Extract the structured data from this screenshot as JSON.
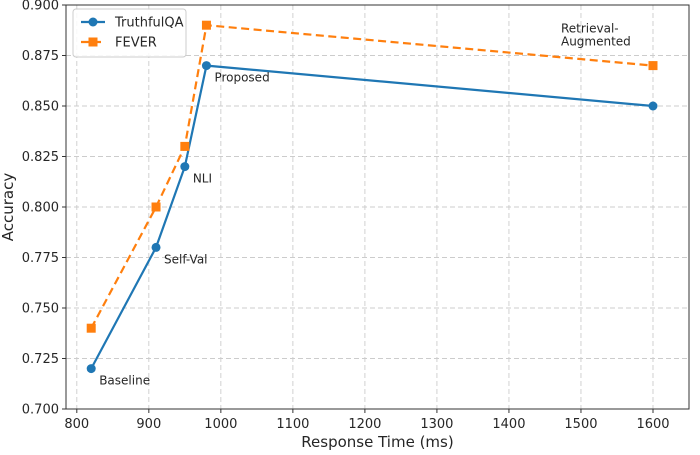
{
  "chart_data": {
    "type": "line",
    "title": "",
    "xlabel": "Response Time (ms)",
    "ylabel": "Accuracy",
    "xlim": [
      785,
      1650
    ],
    "ylim": [
      0.7,
      0.9
    ],
    "xticks": [
      800,
      900,
      1000,
      1100,
      1200,
      1300,
      1400,
      1500,
      1600
    ],
    "yticks": [
      0.7,
      0.725,
      0.75,
      0.775,
      0.8,
      0.825,
      0.85,
      0.875,
      0.9
    ],
    "ytick_labels": [
      "0.700",
      "0.725",
      "0.750",
      "0.775",
      "0.800",
      "0.825",
      "0.850",
      "0.875",
      "0.900"
    ],
    "grid": true,
    "legend_position": "top-left",
    "series": [
      {
        "name": "TruthfulQA",
        "color": "#1f77b4",
        "line_style": "solid",
        "marker": "circle",
        "points": [
          {
            "x": 820,
            "y": 0.72
          },
          {
            "x": 910,
            "y": 0.78
          },
          {
            "x": 950,
            "y": 0.82
          },
          {
            "x": 980,
            "y": 0.87
          },
          {
            "x": 1600,
            "y": 0.85
          }
        ]
      },
      {
        "name": "FEVER",
        "color": "#ff7f0e",
        "line_style": "dashed",
        "marker": "square",
        "points": [
          {
            "x": 820,
            "y": 0.74
          },
          {
            "x": 910,
            "y": 0.8
          },
          {
            "x": 950,
            "y": 0.83
          },
          {
            "x": 980,
            "y": 0.89
          },
          {
            "x": 1600,
            "y": 0.87
          }
        ]
      }
    ],
    "annotations": [
      {
        "text": "Baseline",
        "x": 820,
        "y": 0.72
      },
      {
        "text": "Self-Val",
        "x": 910,
        "y": 0.78
      },
      {
        "text": "NLI",
        "x": 950,
        "y": 0.82
      },
      {
        "text": "Proposed",
        "x": 980,
        "y": 0.87
      },
      {
        "text": "Retrieval-\nAugmented",
        "x": 1600,
        "y": 0.87
      }
    ]
  }
}
